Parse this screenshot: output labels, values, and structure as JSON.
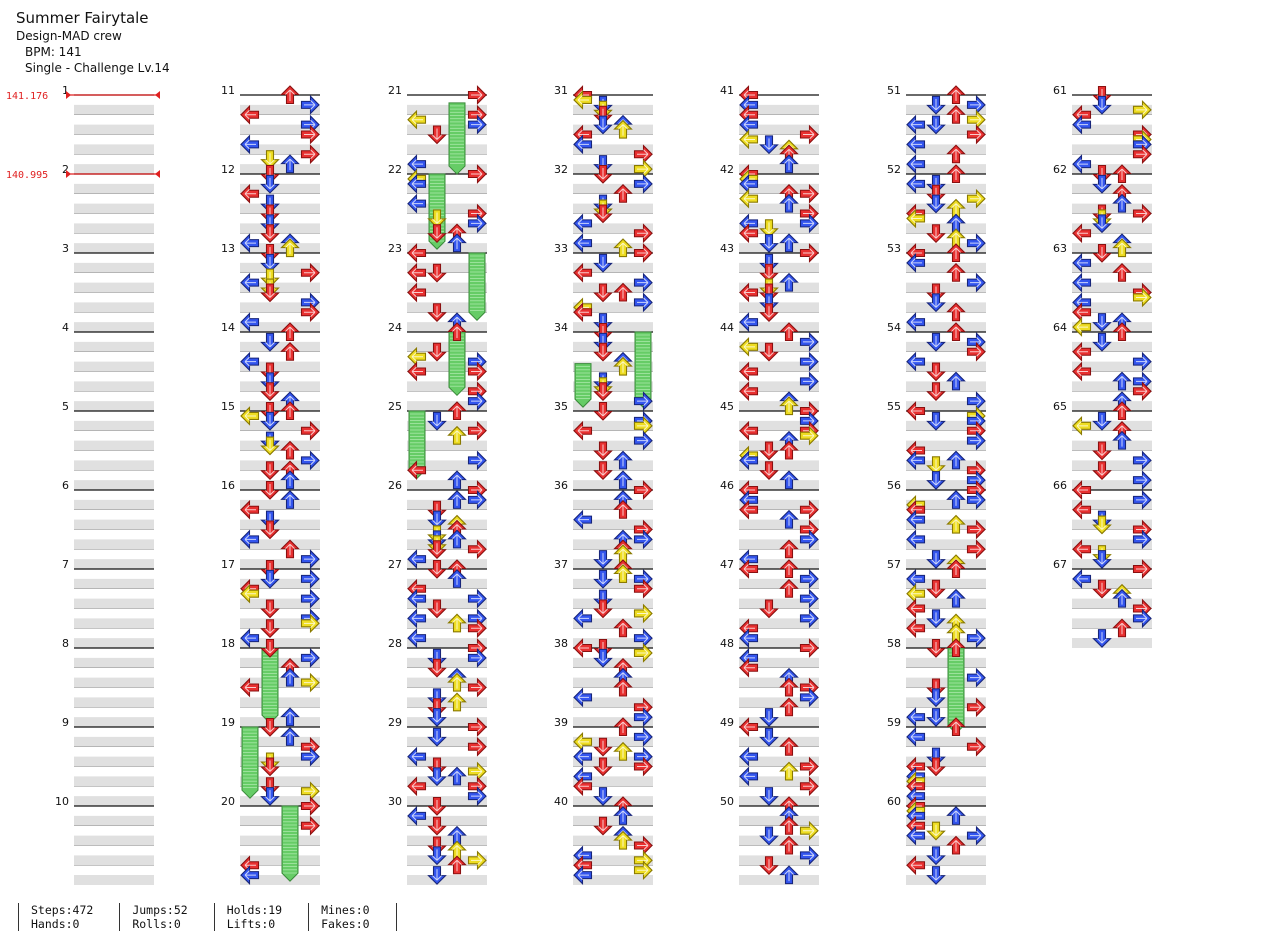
{
  "song": {
    "title": "Summer Fairytale",
    "artist": "Design-MAD crew",
    "bpm_text": "BPM: 141",
    "difficulty": "Single - Challenge  Lv.14"
  },
  "bpm_changes": [
    {
      "measure": 1,
      "label": "141.176"
    },
    {
      "measure": 2,
      "label": "140.995"
    }
  ],
  "chart_data": {
    "type": "step-chart",
    "total_measures": 67,
    "lanes": [
      "left",
      "down",
      "up",
      "right"
    ],
    "hold_color": "#66cc66",
    "note_colors": {
      "quarter": "#e83030",
      "eighth": "#3355ee",
      "sixteenth": "#eedd22"
    }
  },
  "stats": {
    "steps": "Steps:472",
    "hands": "Hands:0",
    "jumps": "Jumps:52",
    "rolls": "Rolls:0",
    "holds": "Holds:19",
    "lifts": "Lifts:0",
    "mines": "Mines:0",
    "fakes": "Fakes:0"
  }
}
